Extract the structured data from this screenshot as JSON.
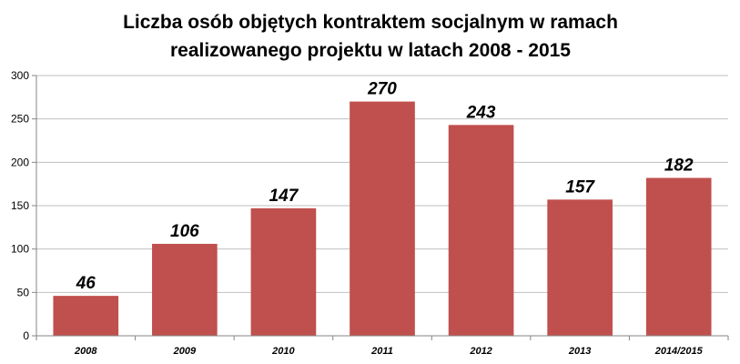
{
  "chart_data": {
    "type": "bar",
    "title": [
      "Liczba osób objętych kontraktem socjalnym w ramach",
      "realizowanego projektu w latach 2008 - 2015"
    ],
    "categories": [
      "2008",
      "2009",
      "2010",
      "2011",
      "2012",
      "2013",
      "2014/2015"
    ],
    "values": [
      46,
      106,
      147,
      270,
      243,
      157,
      182
    ],
    "data_labels": [
      "46",
      "106",
      "147",
      "270",
      "243",
      "157",
      "182"
    ],
    "yticks": [
      "0",
      "50",
      "100",
      "150",
      "200",
      "250",
      "300"
    ],
    "ylim": [
      0,
      300
    ],
    "grid": true,
    "legend": "none",
    "bar_color": "#c0504d",
    "grid_color": "#bfbfbf"
  }
}
